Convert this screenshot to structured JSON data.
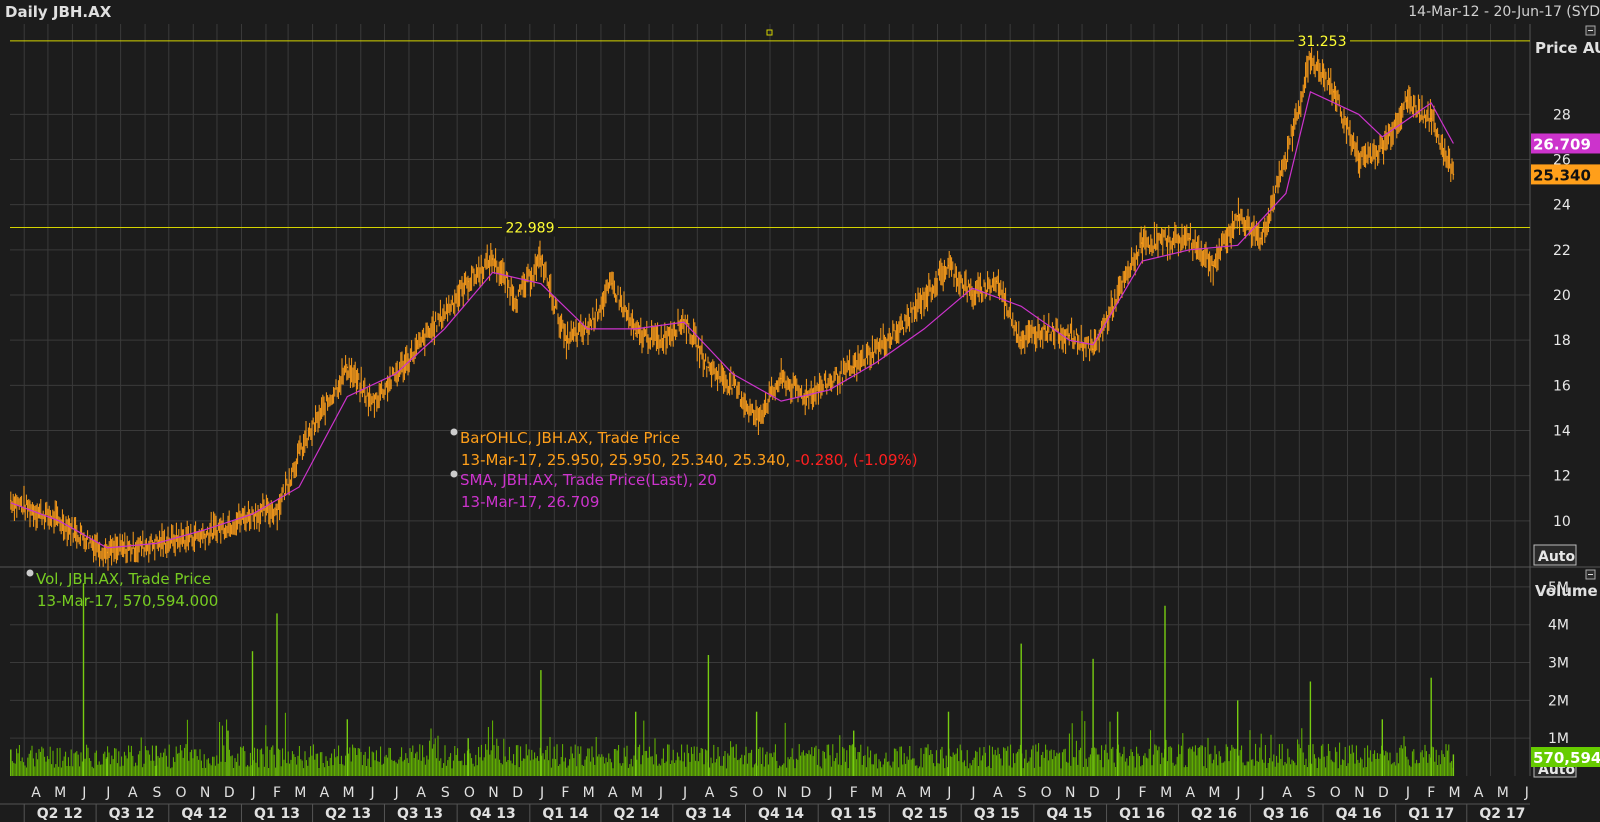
{
  "header": {
    "title": "Daily JBH.AX",
    "date_range": "14-Mar-12 - 20-Jun-17 (SYD"
  },
  "legend": {
    "price_line1": "BarOHLC, JBH.AX, Trade Price",
    "price_line2_prefix": "13-Mar-17, 25.950, 25.950, 25.340, 25.340, ",
    "price_line2_change": "-0.280, (-1.09%)",
    "sma_line1": "SMA, JBH.AX, Trade Price(Last),  20",
    "sma_line2": "13-Mar-17, 26.709",
    "vol_line1": "Vol, JBH.AX, Trade Price",
    "vol_line2": "13-Mar-17, 570,594.000"
  },
  "buttons": {
    "auto_price": "Auto",
    "auto_volume": "Auto"
  },
  "colors": {
    "background": "#1c1c1c",
    "grid": "#3a3a3a",
    "price": "#ff9f1a",
    "sma": "#cc33cc",
    "volume": "#66bb00",
    "hline": "#d4d400",
    "negative": "#ff2020"
  },
  "chart_data": [
    {
      "type": "line",
      "title": "Daily JBH.AX",
      "ylabel": "Price AUD",
      "ylim": [
        8,
        32
      ],
      "yticks": [
        "10",
        "12",
        "14",
        "16",
        "18",
        "20",
        "22",
        "24",
        "26",
        "28"
      ],
      "grid": true,
      "legend_position": "center-left",
      "horizontal_lines": [
        {
          "value": 22.989,
          "label": "22.989"
        },
        {
          "value": 31.253,
          "label": "31.253"
        }
      ],
      "last_value_tags": [
        {
          "label": "26.709",
          "value": 26.709,
          "series": "SMA"
        },
        {
          "label": "25.340",
          "value": 25.34,
          "series": "BarOHLC"
        }
      ],
      "x_months": [
        "A",
        "M",
        "J",
        "J",
        "A",
        "S",
        "O",
        "N",
        "D",
        "J",
        "F",
        "M",
        "A",
        "M",
        "J",
        "J",
        "A",
        "S",
        "O",
        "N",
        "D",
        "J",
        "F",
        "M",
        "A",
        "M",
        "J",
        "J",
        "A",
        "S",
        "O",
        "N",
        "D",
        "J",
        "F",
        "M",
        "A",
        "M",
        "J",
        "J",
        "A",
        "S",
        "O",
        "N",
        "D",
        "J",
        "F",
        "M",
        "A",
        "M",
        "J",
        "J",
        "A",
        "S",
        "O",
        "N",
        "D",
        "J",
        "F",
        "M",
        "A",
        "M",
        "J"
      ],
      "x_quarters": [
        "Q2 12",
        "Q3 12",
        "Q4 12",
        "Q1 13",
        "Q2 13",
        "Q3 13",
        "Q4 13",
        "Q1 14",
        "Q2 14",
        "Q3 14",
        "Q4 14",
        "Q1 15",
        "Q2 15",
        "Q3 15",
        "Q4 15",
        "Q1 16",
        "Q2 16",
        "Q3 16",
        "Q4 16",
        "Q1 17",
        "Q2 17"
      ],
      "series": [
        {
          "name": "BarOHLC",
          "x": [
            "2012-03",
            "2012-05",
            "2012-07",
            "2012-09",
            "2012-11",
            "2013-01",
            "2013-02",
            "2013-03",
            "2013-05",
            "2013-06",
            "2013-08",
            "2013-10",
            "2013-11",
            "2013-12",
            "2014-01",
            "2014-02",
            "2014-03",
            "2014-04",
            "2014-05",
            "2014-06",
            "2014-07",
            "2014-08",
            "2014-09",
            "2014-10",
            "2014-11",
            "2014-12",
            "2015-02",
            "2015-04",
            "2015-06",
            "2015-07",
            "2015-08",
            "2015-09",
            "2015-10",
            "2015-11",
            "2015-12",
            "2016-02",
            "2016-04",
            "2016-05",
            "2016-06",
            "2016-07",
            "2016-08",
            "2016-09",
            "2016-10",
            "2016-11",
            "2016-12",
            "2017-01",
            "2017-02",
            "2017-03"
          ],
          "values": [
            10.9,
            10.0,
            8.6,
            9.0,
            9.4,
            10.3,
            10.5,
            13.0,
            16.8,
            15.2,
            17.8,
            20.6,
            21.6,
            19.8,
            21.6,
            18.0,
            18.5,
            20.5,
            18.3,
            18.0,
            18.9,
            16.8,
            16.0,
            14.5,
            16.3,
            15.5,
            16.8,
            18.5,
            21.3,
            20.0,
            20.6,
            18.0,
            18.5,
            18.2,
            17.6,
            22.3,
            22.5,
            21.3,
            23.5,
            22.5,
            26.0,
            30.5,
            29.0,
            26.0,
            26.5,
            28.6,
            27.8,
            25.34
          ]
        },
        {
          "name": "SMA",
          "x": [
            "2012-03",
            "2012-05",
            "2012-07",
            "2012-09",
            "2012-11",
            "2013-01",
            "2013-03",
            "2013-05",
            "2013-07",
            "2013-09",
            "2013-11",
            "2014-01",
            "2014-03",
            "2014-05",
            "2014-07",
            "2014-09",
            "2014-11",
            "2015-01",
            "2015-03",
            "2015-05",
            "2015-07",
            "2015-09",
            "2015-11",
            "2015-12",
            "2016-02",
            "2016-04",
            "2016-06",
            "2016-08",
            "2016-09",
            "2016-11",
            "2016-12",
            "2017-02",
            "2017-03"
          ],
          "values": [
            10.8,
            10.0,
            8.8,
            9.0,
            9.6,
            10.3,
            11.5,
            15.5,
            16.5,
            18.5,
            21.0,
            20.5,
            18.5,
            18.5,
            18.8,
            16.5,
            15.3,
            15.8,
            17.0,
            18.5,
            20.3,
            19.5,
            18.0,
            17.8,
            21.5,
            22.0,
            22.2,
            24.5,
            29.0,
            28.0,
            27.0,
            28.5,
            26.709
          ]
        }
      ]
    },
    {
      "type": "bar",
      "ylabel": "Volume",
      "ylim": [
        0,
        5500000
      ],
      "yticks": [
        "1M",
        "2M",
        "3M",
        "4M",
        "5M"
      ],
      "last_value_tag": "570,594",
      "series": [
        {
          "name": "Vol",
          "x": [
            "2012-03",
            "2012-06",
            "2012-07",
            "2012-09",
            "2012-12",
            "2013-01",
            "2013-02",
            "2013-05",
            "2013-10",
            "2014-01",
            "2014-05",
            "2014-08",
            "2014-10",
            "2015-02",
            "2015-06",
            "2015-09",
            "2015-12",
            "2016-01",
            "2016-03",
            "2016-06",
            "2016-09",
            "2016-12",
            "2017-02",
            "2017-03"
          ],
          "values": [
            700000,
            5100000,
            500000,
            800000,
            1200000,
            3300000,
            4300000,
            1500000,
            1000000,
            2800000,
            1700000,
            3200000,
            1700000,
            1200000,
            1700000,
            3500000,
            3100000,
            1700000,
            4500000,
            2000000,
            2500000,
            1500000,
            2600000,
            570594
          ]
        }
      ]
    }
  ]
}
